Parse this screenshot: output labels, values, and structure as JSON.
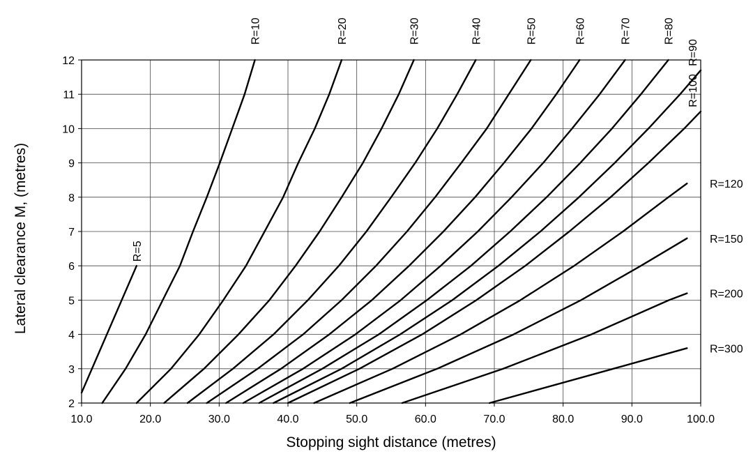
{
  "chart_data": {
    "type": "line",
    "title": "",
    "xlabel": "Stopping sight distance (metres)",
    "ylabel": "Lateral clearance M, (metres)",
    "xlim": [
      10,
      100
    ],
    "ylim": [
      2,
      12
    ],
    "x_ticks": [
      "10.0",
      "20.0",
      "30.0",
      "40.0",
      "50.0",
      "60.0",
      "70.0",
      "80.0",
      "90.0",
      "100.0"
    ],
    "y_ticks": [
      "2",
      "3",
      "4",
      "5",
      "6",
      "7",
      "8",
      "9",
      "10",
      "11",
      "12"
    ],
    "grid": true,
    "legend": "none",
    "line_color": "#000000",
    "series": [
      {
        "name": "R=5",
        "label_position": "top-rotated",
        "points": [
          [
            10.0,
            2.3
          ],
          [
            18.0,
            6.0
          ]
        ]
      },
      {
        "name": "R=10",
        "label_position": "top-rotated",
        "points": [
          [
            13.0,
            2.0
          ],
          [
            16.4,
            3.0
          ],
          [
            19.3,
            4.0
          ],
          [
            21.8,
            5.0
          ],
          [
            24.3,
            6.0
          ],
          [
            26.2,
            7.0
          ],
          [
            28.2,
            8.0
          ],
          [
            30.1,
            9.0
          ],
          [
            31.9,
            10.0
          ],
          [
            33.7,
            11.0
          ],
          [
            35.2,
            12.0
          ]
        ]
      },
      {
        "name": "R=20",
        "label_position": "top-rotated",
        "points": [
          [
            18.0,
            2.0
          ],
          [
            23.0,
            3.0
          ],
          [
            27.1,
            4.0
          ],
          [
            30.6,
            5.0
          ],
          [
            33.9,
            6.0
          ],
          [
            36.6,
            7.0
          ],
          [
            39.3,
            8.0
          ],
          [
            41.5,
            9.0
          ],
          [
            43.9,
            10.0
          ],
          [
            46.0,
            11.0
          ],
          [
            47.8,
            12.0
          ]
        ]
      },
      {
        "name": "R=30",
        "label_position": "top-rotated",
        "points": [
          [
            22.0,
            2.0
          ],
          [
            27.8,
            3.0
          ],
          [
            32.8,
            4.0
          ],
          [
            37.3,
            5.0
          ],
          [
            41.1,
            6.0
          ],
          [
            44.6,
            7.0
          ],
          [
            47.8,
            8.0
          ],
          [
            50.9,
            9.0
          ],
          [
            53.6,
            10.0
          ],
          [
            56.1,
            11.0
          ],
          [
            58.3,
            12.0
          ]
        ]
      },
      {
        "name": "R=40",
        "label_position": "top-rotated",
        "points": [
          [
            25.4,
            2.0
          ],
          [
            32.0,
            3.0
          ],
          [
            37.9,
            4.0
          ],
          [
            42.9,
            5.0
          ],
          [
            47.4,
            6.0
          ],
          [
            51.4,
            7.0
          ],
          [
            55.0,
            8.0
          ],
          [
            58.5,
            9.0
          ],
          [
            61.7,
            10.0
          ],
          [
            64.6,
            11.0
          ],
          [
            67.3,
            12.0
          ]
        ]
      },
      {
        "name": "R=50",
        "label_position": "top-rotated",
        "points": [
          [
            28.2,
            2.0
          ],
          [
            35.6,
            3.0
          ],
          [
            42.2,
            4.0
          ],
          [
            47.8,
            5.0
          ],
          [
            52.8,
            6.0
          ],
          [
            57.3,
            7.0
          ],
          [
            61.4,
            8.0
          ],
          [
            65.2,
            9.0
          ],
          [
            68.9,
            10.0
          ],
          [
            72.1,
            11.0
          ],
          [
            75.3,
            12.0
          ]
        ]
      },
      {
        "name": "R=60",
        "label_position": "top-rotated",
        "points": [
          [
            31.0,
            2.0
          ],
          [
            39.0,
            3.0
          ],
          [
            46.0,
            4.0
          ],
          [
            52.2,
            5.0
          ],
          [
            57.6,
            6.0
          ],
          [
            62.6,
            7.0
          ],
          [
            67.2,
            8.0
          ],
          [
            71.4,
            9.0
          ],
          [
            75.4,
            10.0
          ],
          [
            79.0,
            11.0
          ],
          [
            82.4,
            12.0
          ]
        ]
      },
      {
        "name": "R=70",
        "label_position": "top-rotated",
        "points": [
          [
            33.5,
            2.0
          ],
          [
            42.2,
            3.0
          ],
          [
            49.8,
            4.0
          ],
          [
            56.4,
            5.0
          ],
          [
            62.2,
            6.0
          ],
          [
            67.6,
            7.0
          ],
          [
            72.5,
            8.0
          ],
          [
            77.1,
            9.0
          ],
          [
            81.3,
            10.0
          ],
          [
            85.3,
            11.0
          ],
          [
            89.0,
            12.0
          ]
        ]
      },
      {
        "name": "R=80",
        "label_position": "top-rotated",
        "points": [
          [
            35.8,
            2.0
          ],
          [
            45.0,
            3.0
          ],
          [
            53.2,
            4.0
          ],
          [
            60.2,
            5.0
          ],
          [
            66.6,
            6.0
          ],
          [
            72.3,
            7.0
          ],
          [
            77.6,
            8.0
          ],
          [
            82.5,
            9.0
          ],
          [
            87.1,
            10.0
          ],
          [
            91.3,
            11.0
          ],
          [
            95.3,
            12.0
          ]
        ]
      },
      {
        "name": "R=90",
        "label_position": "top-rotated",
        "points": [
          [
            37.9,
            2.0
          ],
          [
            47.8,
            3.0
          ],
          [
            56.3,
            4.0
          ],
          [
            63.9,
            5.0
          ],
          [
            70.6,
            6.0
          ],
          [
            76.7,
            7.0
          ],
          [
            82.3,
            8.0
          ],
          [
            87.5,
            9.0
          ],
          [
            92.4,
            10.0
          ],
          [
            97.0,
            11.0
          ],
          [
            100.0,
            11.7
          ]
        ]
      },
      {
        "name": "R=100",
        "label_position": "top-rotated",
        "points": [
          [
            40.0,
            2.0
          ],
          [
            50.4,
            3.0
          ],
          [
            59.5,
            4.0
          ],
          [
            67.4,
            5.0
          ],
          [
            74.5,
            6.0
          ],
          [
            80.9,
            7.0
          ],
          [
            86.9,
            8.0
          ],
          [
            92.4,
            9.0
          ],
          [
            97.6,
            10.0
          ],
          [
            100.0,
            10.5
          ]
        ]
      },
      {
        "name": "R=120",
        "label_position": "right",
        "points": [
          [
            43.8,
            2.0
          ],
          [
            55.2,
            3.0
          ],
          [
            65.1,
            4.0
          ],
          [
            73.8,
            5.0
          ],
          [
            81.6,
            6.0
          ],
          [
            88.7,
            7.0
          ],
          [
            95.3,
            8.0
          ],
          [
            98.0,
            8.4
          ]
        ]
      },
      {
        "name": "R=150",
        "label_position": "right",
        "points": [
          [
            49.0,
            2.0
          ],
          [
            61.7,
            3.0
          ],
          [
            72.8,
            4.0
          ],
          [
            82.6,
            5.0
          ],
          [
            91.3,
            6.0
          ],
          [
            98.0,
            6.8
          ]
        ]
      },
      {
        "name": "R=200",
        "label_position": "right",
        "points": [
          [
            56.6,
            2.0
          ],
          [
            71.3,
            3.0
          ],
          [
            84.1,
            4.0
          ],
          [
            95.4,
            5.0
          ],
          [
            98.0,
            5.2
          ]
        ]
      },
      {
        "name": "R=300",
        "label_position": "right",
        "points": [
          [
            69.3,
            2.0
          ],
          [
            87.3,
            3.0
          ],
          [
            98.0,
            3.6
          ]
        ]
      }
    ]
  }
}
